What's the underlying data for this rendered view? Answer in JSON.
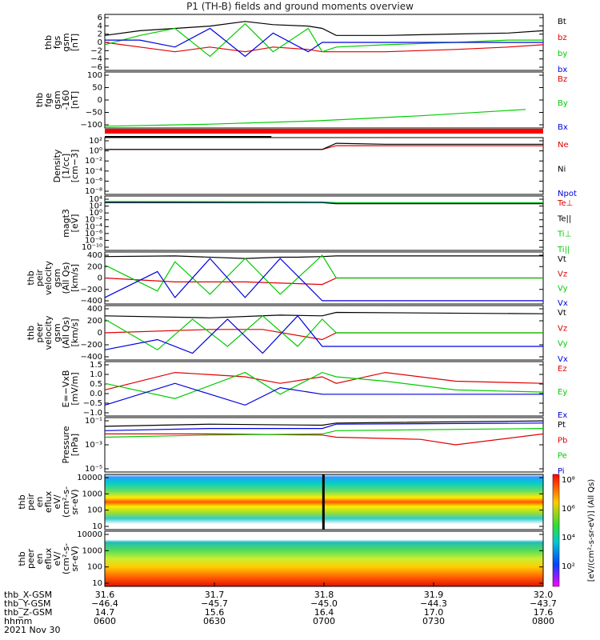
{
  "title": "P1 (TH-B) fields and ground moments overview",
  "colors": {
    "black": "#000000",
    "red": "#e00000",
    "green": "#00cc00",
    "blue": "#0000e0"
  },
  "chart_data": [
    {
      "type": "line",
      "ylabel": [
        "thb",
        "fgs",
        "gsm",
        "[nT]"
      ],
      "ylim": [
        -6,
        6
      ],
      "ytick_labels": [
        "6",
        "4",
        "2",
        "0",
        "−2",
        "−4",
        "−6"
      ],
      "legend": [
        "Bt",
        "bz",
        "by",
        "bx"
      ],
      "legend_colors": [
        "black",
        "red",
        "green",
        "blue"
      ],
      "series": [
        {
          "name": "Bt",
          "color": "black",
          "x": [
            0,
            10,
            20,
            30,
            40,
            48,
            58,
            62,
            66,
            80,
            100,
            115,
            125
          ],
          "y": [
            1.5,
            2.5,
            3,
            3.5,
            4.5,
            3.8,
            3.5,
            3,
            1.5,
            1.5,
            1.8,
            2,
            2.5
          ]
        },
        {
          "name": "bz",
          "color": "red",
          "x": [
            0,
            10,
            20,
            30,
            40,
            48,
            58,
            62,
            66,
            80,
            100,
            115,
            125
          ],
          "y": [
            0,
            -1,
            -2,
            -1,
            -2,
            -1,
            -1.5,
            -2,
            -2,
            -2,
            -1.5,
            -1,
            -0.5
          ]
        },
        {
          "name": "by",
          "color": "green",
          "x": [
            0,
            10,
            20,
            30,
            40,
            48,
            58,
            62,
            66,
            80,
            100,
            115,
            125
          ],
          "y": [
            -0.5,
            1.5,
            3,
            -3,
            4,
            -2,
            3,
            -2,
            -1,
            -0.5,
            0,
            0.5,
            0.5
          ]
        },
        {
          "name": "bx",
          "color": "blue",
          "x": [
            0,
            10,
            20,
            30,
            40,
            48,
            58,
            62,
            66,
            80,
            100,
            115,
            125
          ],
          "y": [
            0.5,
            0.5,
            -1,
            3,
            -3,
            2,
            -2,
            0,
            0,
            0,
            0,
            0,
            0
          ]
        }
      ]
    },
    {
      "type": "line",
      "ylabel": [
        "thb",
        "fge",
        "gsm",
        "-160",
        "[nT]"
      ],
      "ylim": [
        -120,
        100
      ],
      "ytick_labels": [
        "100",
        "50",
        "0",
        "−50",
        "−100"
      ],
      "legend": [
        "Bz",
        "By",
        "Bx"
      ],
      "legend_colors": [
        "red",
        "green",
        "blue"
      ],
      "series": [
        {
          "name": "By",
          "color": "green",
          "x": [
            0,
            30,
            60,
            90,
            120
          ],
          "y": [
            -113,
            -105,
            -92,
            -72,
            -47
          ]
        }
      ]
    },
    {
      "type": "line",
      "ylabel": [
        "Density",
        "[1/cc]",
        "[cm−3]"
      ],
      "log": true,
      "ylim": [
        -9,
        3
      ],
      "ytick_labels": [
        "10²",
        "10⁰",
        "10⁻²",
        "10⁻⁴",
        "10⁻⁶",
        "10⁻⁸"
      ],
      "legend": [
        "Ne",
        "Ni",
        "Npot"
      ],
      "legend_colors": [
        "red",
        "black",
        "blue"
      ],
      "series": [
        {
          "name": "Ne",
          "color": "red",
          "x": [
            0,
            40,
            62,
            66,
            80,
            125
          ],
          "y": [
            0.5,
            0.5,
            0.5,
            1.3,
            1.3,
            1.3
          ]
        },
        {
          "name": "Ni",
          "color": "black",
          "x": [
            0,
            40,
            62,
            66,
            80,
            125
          ],
          "y": [
            0.5,
            0.5,
            0.5,
            1.8,
            1.6,
            1.6
          ]
        }
      ]
    },
    {
      "type": "line",
      "ylabel": [
        "magt3",
        "[eV]"
      ],
      "log": true,
      "ylim": [
        -10,
        4
      ],
      "ytick_labels": [
        "10⁴",
        "10²",
        "10⁰",
        "10⁻²",
        "10⁻⁴",
        "10⁻⁶",
        "10⁻⁸",
        "10⁻¹⁰"
      ],
      "legend": [
        "Te⊥",
        "Te||",
        "Ti⊥",
        "Ti||"
      ],
      "legend_colors": [
        "red",
        "black",
        "green",
        "green"
      ],
      "series": [
        {
          "name": "Te||",
          "color": "black",
          "x": [
            0,
            62,
            66,
            125
          ],
          "y": [
            2.3,
            2.3,
            2,
            2
          ]
        },
        {
          "name": "Ti⊥",
          "color": "blue",
          "x": [
            0,
            62,
            66,
            125
          ],
          "y": [
            2.5,
            2.4,
            2.2,
            2.2
          ]
        },
        {
          "name": "Ti||",
          "color": "green",
          "x": [
            0,
            62,
            66,
            125
          ],
          "y": [
            2.6,
            2.5,
            2.3,
            2.3
          ]
        }
      ]
    },
    {
      "type": "line",
      "ylabel": [
        "thb",
        "peir",
        "velocity",
        "gsm",
        "(All Qs)",
        "[km/s]"
      ],
      "ylim": [
        -400,
        400
      ],
      "ytick_labels": [
        "400",
        "200",
        "0",
        "−200",
        "−400"
      ],
      "legend": [
        "Vt",
        "Vz",
        "Vy",
        "Vx"
      ],
      "legend_colors": [
        "black",
        "red",
        "green",
        "blue"
      ],
      "series": [
        {
          "name": "Vt",
          "color": "black",
          "x": [
            0,
            20,
            40,
            50,
            55,
            62,
            66,
            125
          ],
          "y": [
            330,
            340,
            300,
            320,
            320,
            330,
            340,
            340
          ]
        },
        {
          "name": "Vz",
          "color": "red",
          "x": [
            0,
            20,
            40,
            62,
            66,
            125
          ],
          "y": [
            0,
            -60,
            -60,
            -100,
            0,
            0
          ]
        },
        {
          "name": "Vy",
          "color": "green",
          "x": [
            0,
            15,
            20,
            30,
            40,
            50,
            62,
            66,
            125
          ],
          "y": [
            200,
            -200,
            250,
            -250,
            300,
            -250,
            350,
            0,
            0
          ]
        },
        {
          "name": "Vx",
          "color": "blue",
          "x": [
            0,
            15,
            20,
            30,
            40,
            50,
            62,
            66,
            125
          ],
          "y": [
            -300,
            100,
            -300,
            300,
            -300,
            300,
            -350,
            -350,
            -350
          ]
        }
      ]
    },
    {
      "type": "line",
      "ylabel": [
        "thb",
        "peer",
        "velocity",
        "gsm",
        "(All Qs)",
        "[km/s]"
      ],
      "ylim": [
        -400,
        400
      ],
      "ytick_labels": [
        "400",
        "200",
        "0",
        "−200",
        "−400"
      ],
      "legend": [
        "Vt",
        "Vz",
        "Vy",
        "Vx"
      ],
      "legend_colors": [
        "black",
        "red",
        "green",
        "blue"
      ],
      "series": [
        {
          "name": "Vt",
          "color": "black",
          "x": [
            0,
            30,
            50,
            62,
            66,
            125
          ],
          "y": [
            250,
            220,
            260,
            250,
            300,
            280
          ]
        },
        {
          "name": "Vz",
          "color": "red",
          "x": [
            0,
            30,
            45,
            62,
            66,
            125
          ],
          "y": [
            0,
            50,
            50,
            -100,
            0,
            0
          ]
        },
        {
          "name": "Vy",
          "color": "green",
          "x": [
            0,
            15,
            25,
            35,
            45,
            55,
            62,
            66,
            125
          ],
          "y": [
            200,
            -250,
            200,
            -200,
            250,
            -200,
            200,
            0,
            0
          ]
        },
        {
          "name": "Vx",
          "color": "blue",
          "x": [
            0,
            15,
            25,
            35,
            45,
            55,
            62,
            66,
            125
          ],
          "y": [
            -250,
            -100,
            -300,
            200,
            -300,
            250,
            -200,
            -200,
            -200
          ]
        }
      ]
    },
    {
      "type": "line",
      "ylabel": [
        "E=−VxB",
        "[mV/m]"
      ],
      "ylim": [
        -1,
        1.5
      ],
      "ytick_labels": [
        "1.5",
        "1.0",
        "0.5",
        "0.0",
        "−0.5",
        "−1.0"
      ],
      "legend": [
        "Ez",
        "Ey",
        "Ex"
      ],
      "legend_colors": [
        "red",
        "green",
        "blue"
      ],
      "series": [
        {
          "name": "Ez",
          "color": "red",
          "x": [
            0,
            20,
            40,
            50,
            62,
            66,
            80,
            100,
            125
          ],
          "y": [
            0.2,
            1,
            0.8,
            0.5,
            0.8,
            0.5,
            1,
            0.6,
            0.5
          ]
        },
        {
          "name": "Ey",
          "color": "green",
          "x": [
            0,
            20,
            40,
            50,
            62,
            66,
            80,
            100,
            125
          ],
          "y": [
            0.5,
            -0.2,
            1,
            0,
            1,
            0.8,
            0.6,
            0.2,
            0.1
          ]
        },
        {
          "name": "Ex",
          "color": "blue",
          "x": [
            0,
            20,
            40,
            50,
            62,
            66,
            80,
            100,
            125
          ],
          "y": [
            -0.5,
            0.5,
            -0.5,
            0.3,
            0,
            0,
            0,
            0,
            0
          ]
        }
      ]
    },
    {
      "type": "line",
      "ylabel": [
        "Pressure",
        "[nPa]"
      ],
      "log": true,
      "ylim": [
        -6,
        -1
      ],
      "ytick_labels": [
        "10⁻¹",
        "10⁻³",
        "10⁻⁵"
      ],
      "legend": [
        "Pt",
        "Pb",
        "Pe",
        "Pi"
      ],
      "legend_colors": [
        "black",
        "red",
        "green",
        "blue"
      ],
      "series": [
        {
          "name": "Pt",
          "color": "black",
          "x": [
            0,
            30,
            62,
            66,
            125
          ],
          "y": [
            -1.8,
            -1.6,
            -1.7,
            -1.5,
            -1.3
          ]
        },
        {
          "name": "Pb",
          "color": "red",
          "x": [
            0,
            30,
            62,
            66,
            90,
            100,
            125
          ],
          "y": [
            -2.5,
            -2.5,
            -2.6,
            -2.8,
            -3,
            -3.5,
            -2.5
          ]
        },
        {
          "name": "Pe",
          "color": "green",
          "x": [
            0,
            30,
            62,
            66,
            125
          ],
          "y": [
            -2.8,
            -2.6,
            -2.5,
            -2.2,
            -2
          ]
        },
        {
          "name": "Pi",
          "color": "blue",
          "x": [
            0,
            30,
            62,
            66,
            125
          ],
          "y": [
            -2.2,
            -2,
            -2,
            -1.6,
            -1.5
          ]
        }
      ]
    },
    {
      "type": "heatmap",
      "ylabel": [
        "thb",
        "peir",
        "en",
        "eflux",
        "eV/",
        "(cm²-s-",
        "sr-eV)"
      ],
      "log": true,
      "ylim": [
        1,
        4
      ],
      "ytick_labels": [
        "10000",
        "1000",
        "100",
        "10"
      ]
    },
    {
      "type": "heatmap",
      "ylabel": [
        "thb",
        "peer",
        "en",
        "eflux",
        "eV/",
        "(cm²-s-",
        "sr-eV)"
      ],
      "log": true,
      "ylim": [
        1,
        4
      ],
      "ytick_labels": [
        "10000",
        "1000",
        "100",
        "10"
      ]
    }
  ],
  "colorbar": {
    "label": "[eV/(cm²-s-sr-eV)] (All Qs)",
    "tick_labels": [
      "10⁸",
      "10⁶",
      "10⁴",
      "10²"
    ]
  },
  "ephemeris": {
    "rows": [
      {
        "label": "thb_X-GSM",
        "values": [
          "31.6",
          "31.7",
          "31.8",
          "31.9",
          "32.0"
        ]
      },
      {
        "label": "thb_Y-GSM",
        "values": [
          "−46.4",
          "−45.7",
          "−45.0",
          "−44.3",
          "−43.7"
        ]
      },
      {
        "label": "thb_Z-GSM",
        "values": [
          "14.7",
          "15.6",
          "16.4",
          "17.0",
          "17.6"
        ]
      },
      {
        "label": "hhmm",
        "values": [
          "0600",
          "0630",
          "0700",
          "0730",
          "0800"
        ]
      }
    ],
    "date": "2021 Nov 30"
  }
}
